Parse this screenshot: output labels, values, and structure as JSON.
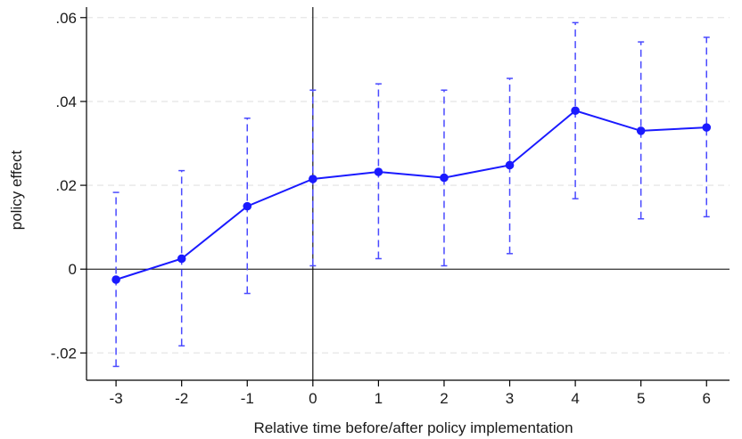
{
  "chart_data": {
    "type": "line",
    "title": "",
    "xlabel": "Relative time before/after policy implementation",
    "ylabel": "policy effect",
    "x": [
      -3,
      -2,
      -1,
      0,
      1,
      2,
      3,
      4,
      5,
      6
    ],
    "x_tick_labels": [
      "-3",
      "-2",
      "-1",
      "0",
      "1",
      "2",
      "3",
      "4",
      "5",
      "6"
    ],
    "y_ticks": [
      -0.02,
      0,
      0.02,
      0.04,
      0.06
    ],
    "y_tick_labels": [
      "-.02",
      "0",
      ".02",
      ".04",
      ".06"
    ],
    "xlim": [
      -3.45,
      6.35
    ],
    "ylim": [
      -0.0265,
      0.0625
    ],
    "reference_lines": {
      "x": 0,
      "y": 0
    },
    "grid": true,
    "series": [
      {
        "values": [
          -0.0025,
          0.0025,
          0.015,
          0.0215,
          0.0232,
          0.0218,
          0.0248,
          0.0378,
          0.033,
          0.0338
        ],
        "ci_lower": [
          -0.0232,
          -0.0183,
          -0.0058,
          0.0008,
          0.0025,
          0.0008,
          0.0037,
          0.0168,
          0.012,
          0.0125
        ],
        "ci_upper": [
          0.0183,
          0.0235,
          0.036,
          0.0427,
          0.0442,
          0.0427,
          0.0455,
          0.0588,
          0.0542,
          0.0553
        ]
      }
    ],
    "colors": {
      "series": "#1a1aff",
      "ci": "#4a4aff",
      "axis": "#000000",
      "grid": "#e6e6e6"
    }
  }
}
